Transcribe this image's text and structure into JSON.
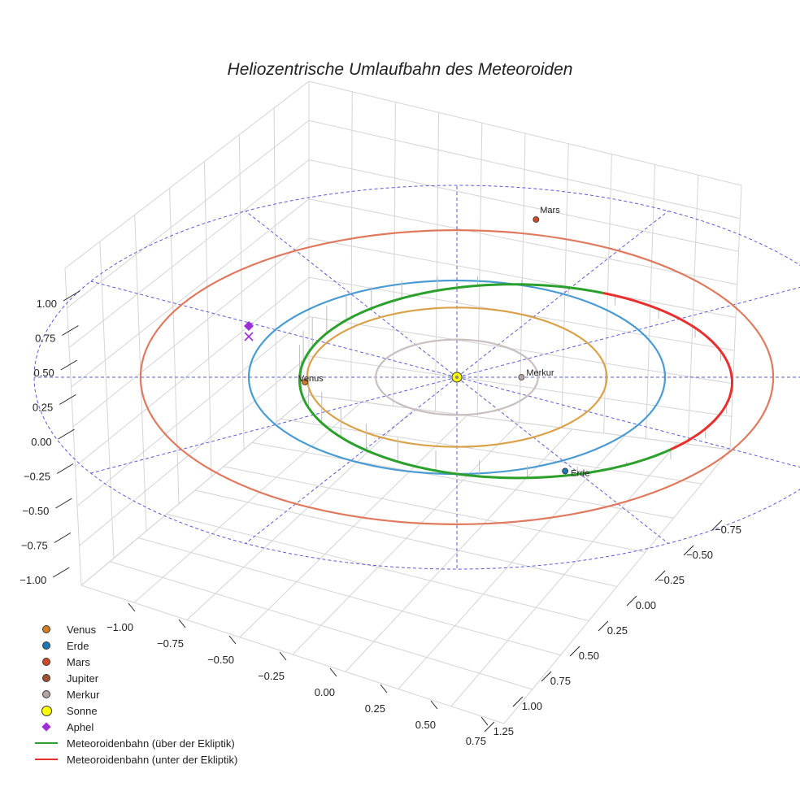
{
  "chart_data": {
    "type": "line",
    "title": "Heliozentrische Umlaufbahn des Meteoroiden",
    "axes": {
      "x_ticks": [
        "−1.00",
        "−0.75",
        "−0.50",
        "−0.25",
        "0.00",
        "0.25",
        "0.50",
        "0.75"
      ],
      "y_ticks": [
        "−0.75",
        "−0.50",
        "−0.25",
        "0.00",
        "0.25",
        "0.50",
        "0.75",
        "1.00",
        "1.25"
      ],
      "z_ticks": [
        "1.00",
        "0.75",
        "0.50",
        "0.25",
        "0.00",
        "−0.25",
        "−0.50",
        "−0.75",
        "−1.00"
      ]
    },
    "planets": [
      {
        "name": "Venus",
        "color": "#d37d24",
        "label": "Venus"
      },
      {
        "name": "Erde",
        "color": "#1f77b4",
        "label": "Erde"
      },
      {
        "name": "Mars",
        "color": "#cf4a27",
        "label": "Mars"
      },
      {
        "name": "Jupiter",
        "color": "#a0522d",
        "label": ""
      },
      {
        "name": "Merkur",
        "color": "#b3a4a4",
        "label": "Merkur"
      }
    ],
    "orbits": [
      {
        "name": "Merkur",
        "color": "#c9bfbf",
        "radius_au": 0.39
      },
      {
        "name": "Venus",
        "color": "#d9a24a",
        "radius_au": 0.72
      },
      {
        "name": "Erde",
        "color": "#4a9bd1",
        "radius_au": 1.0
      },
      {
        "name": "Mars",
        "color": "#e07a5f",
        "radius_au": 1.52
      }
    ],
    "sun": {
      "name": "Sonne",
      "color": "#ffff00"
    },
    "aphel": {
      "name": "Aphel",
      "color": "#9d2fd6"
    },
    "series": [
      {
        "name": "Meteoroidenbahn (über der Ekliptik)",
        "color": "#2ca02c"
      },
      {
        "name": "Meteoroidenbahn (unter der Ekliptik)",
        "color": "#e8302f"
      }
    ],
    "legend_position": "bottom-left",
    "grid": true
  },
  "legend": [
    {
      "label": "Venus",
      "kind": "dot",
      "color": "#d37d24"
    },
    {
      "label": "Erde",
      "kind": "dot",
      "color": "#1f77b4"
    },
    {
      "label": "Mars",
      "kind": "dot",
      "color": "#cf4a27"
    },
    {
      "label": "Jupiter",
      "kind": "dot",
      "color": "#a0522d"
    },
    {
      "label": "Merkur",
      "kind": "dot",
      "color": "#b3a4a4"
    },
    {
      "label": "Sonne",
      "kind": "bigdot",
      "color": "#ffff00"
    },
    {
      "label": "Aphel",
      "kind": "diamond",
      "color": "#9d2fd6"
    },
    {
      "label": "Meteoroidenbahn (über der Ekliptik)",
      "kind": "line",
      "color": "#2ca02c"
    },
    {
      "label": "Meteoroidenbahn (unter der Ekliptik)",
      "kind": "line",
      "color": "#e8302f"
    }
  ]
}
